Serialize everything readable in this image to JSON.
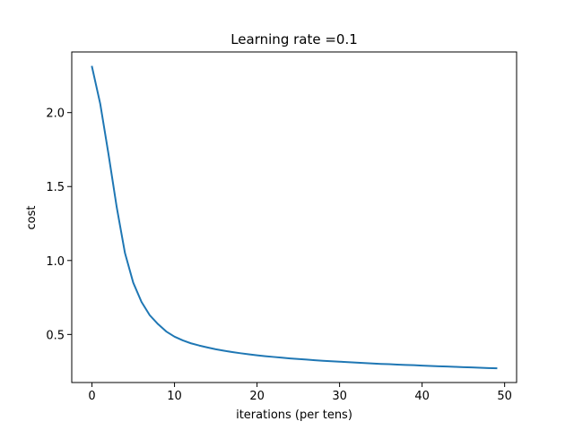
{
  "chart_data": {
    "type": "line",
    "title": "Learning rate =0.1",
    "xlabel": "iterations (per tens)",
    "ylabel": "cost",
    "xlim": [
      -2.45,
      51.45
    ],
    "ylim": [
      0.175,
      2.41
    ],
    "xticks": [
      0,
      10,
      20,
      30,
      40,
      50
    ],
    "yticks": [
      0.5,
      1.0,
      1.5,
      2.0
    ],
    "xtick_labels": [
      "0",
      "10",
      "20",
      "30",
      "40",
      "50"
    ],
    "ytick_labels": [
      "0.5",
      "1.0",
      "1.5",
      "2.0"
    ],
    "grid": false,
    "series": [
      {
        "color": "#1f77b4",
        "x": [
          0,
          1,
          2,
          3,
          4,
          5,
          6,
          7,
          8,
          9,
          10,
          11,
          12,
          13,
          14,
          15,
          16,
          17,
          18,
          19,
          20,
          21,
          22,
          23,
          24,
          25,
          26,
          27,
          28,
          29,
          30,
          31,
          32,
          33,
          34,
          35,
          36,
          37,
          38,
          39,
          40,
          41,
          42,
          43,
          44,
          45,
          46,
          47,
          48,
          49
        ],
        "y": [
          2.31,
          2.06,
          1.72,
          1.36,
          1.05,
          0.85,
          0.72,
          0.63,
          0.57,
          0.52,
          0.485,
          0.46,
          0.44,
          0.425,
          0.412,
          0.4,
          0.39,
          0.381,
          0.373,
          0.366,
          0.359,
          0.353,
          0.348,
          0.343,
          0.338,
          0.334,
          0.33,
          0.326,
          0.322,
          0.319,
          0.316,
          0.313,
          0.31,
          0.307,
          0.304,
          0.301,
          0.299,
          0.296,
          0.294,
          0.292,
          0.289,
          0.287,
          0.285,
          0.283,
          0.281,
          0.279,
          0.277,
          0.275,
          0.273,
          0.271
        ]
      }
    ]
  }
}
